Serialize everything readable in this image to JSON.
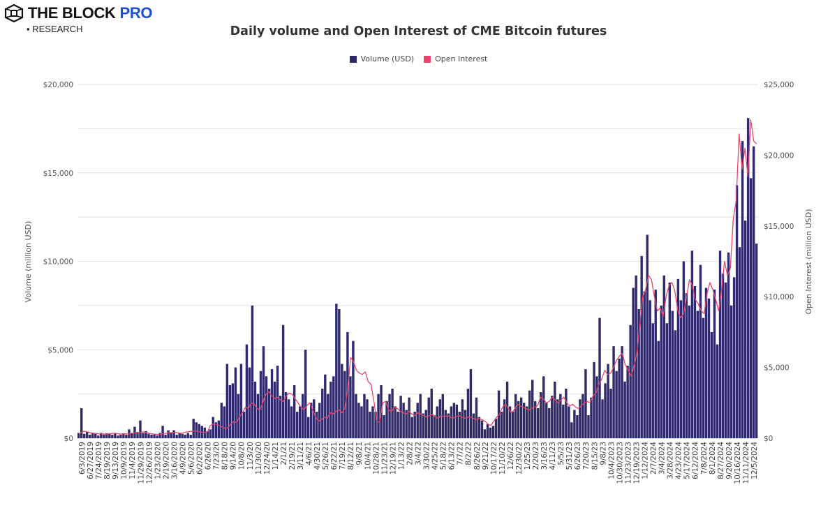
{
  "branding": {
    "logo_main": "THE BLOCK ",
    "logo_accent": "PRO",
    "logo_sub": "▪ RESEARCH"
  },
  "chart_data": {
    "type": "bar+line",
    "title": "Daily volume and Open Interest of CME Bitcoin futures",
    "legend": {
      "position": "top-center",
      "entries": [
        {
          "name": "Volume (USD)",
          "color": "#2e2a6b"
        },
        {
          "name": "Open Interest",
          "color": "#e8456b"
        }
      ]
    },
    "ylabel_left": "Volume (million USD)",
    "ylabel_right": "Open Interest (million USD)",
    "ylim_left": [
      0,
      20000
    ],
    "ylim_right": [
      0,
      25000
    ],
    "yticks_left": [
      "$0",
      "$5,000",
      "$10,000",
      "$15,000",
      "$20,000"
    ],
    "yticks_right": [
      "$0",
      "$5,000",
      "$10,000",
      "$15,000",
      "$20,000",
      "$25,000"
    ],
    "grid": true,
    "x_tick_labels": [
      "6/3/2019",
      "6/27/2019",
      "7/24/2019",
      "8/19/2019",
      "9/13/2019",
      "10/9/2019",
      "11/4/2019",
      "11/29/2019",
      "12/26/2019",
      "1/23/2020",
      "2/19/2020",
      "3/16/2020",
      "4/9/2020",
      "5/6/2020",
      "6/2/2020",
      "6/26/20",
      "7/23/20",
      "8/18/20",
      "9/14/20",
      "10/8/20",
      "11/3/20",
      "11/30/20",
      "12/24/20",
      "1/14/21",
      "2/1/21",
      "2/19/21",
      "3/11/21",
      "4/6/21",
      "4/30/21",
      "5/26/21",
      "6/22/21",
      "7/19/21",
      "8/12/21",
      "9/8/21",
      "10/4/21",
      "10/28/21",
      "11/23/21",
      "12/19/21",
      "1/13/22",
      "2/8/22",
      "3/4/22",
      "3/30/22",
      "4/25/22",
      "5/18/22",
      "6/13/22",
      "7/7/22",
      "8/2/22",
      "8/26/22",
      "9/21/22",
      "10/17/22",
      "11/10/22",
      "12/6/22",
      "12/30/22",
      "1/25/23",
      "2/20/23",
      "3/16/23",
      "4/11/23",
      "5/5/23",
      "5/31/23",
      "6/26/23",
      "7/20/23",
      "8/15/23",
      "9/8/23",
      "10/4/2023",
      "10/30/2023",
      "11/23/2023",
      "12/19/2023",
      "1/12/2024",
      "2/7/2024",
      "3/4/2024",
      "3/28/2024",
      "4/23/2024",
      "5/17/2024",
      "6/12/2024",
      "7/8/2024",
      "8/1/2024",
      "8/27/2024",
      "9/20/2024",
      "10/16/2024",
      "11/11/2024",
      "12/5/2024"
    ],
    "series": [
      {
        "name": "Volume (USD)",
        "type": "bar",
        "axis": "left",
        "values": [
          300,
          1700,
          250,
          350,
          200,
          300,
          250,
          150,
          300,
          200,
          280,
          250,
          200,
          300,
          150,
          200,
          250,
          200,
          500,
          300,
          650,
          350,
          1000,
          300,
          400,
          250,
          200,
          250,
          150,
          300,
          700,
          200,
          450,
          300,
          450,
          200,
          300,
          250,
          200,
          300,
          200,
          1100,
          900,
          800,
          700,
          600,
          400,
          500,
          1200,
          900,
          1000,
          2000,
          1800,
          4200,
          3000,
          3100,
          4000,
          2500,
          4200,
          1500,
          5300,
          4000,
          7500,
          3200,
          2500,
          3800,
          5200,
          3500,
          2800,
          3900,
          3200,
          4100,
          2400,
          6400,
          2600,
          2200,
          1800,
          3000,
          1500,
          1800,
          2500,
          5000,
          1200,
          2000,
          2200,
          1500,
          2000,
          2800,
          3600,
          2500,
          3200,
          3500,
          7600,
          7300,
          4200,
          3800,
          6000,
          3500,
          5500,
          2500,
          2000,
          1800,
          2500,
          2200,
          1500,
          1800,
          1500,
          2500,
          3000,
          1300,
          2100,
          2500,
          2800,
          1800,
          1500,
          2400,
          2000,
          1600,
          2300,
          1200,
          1500,
          2000,
          2500,
          1400,
          1600,
          2300,
          2800,
          1300,
          1800,
          2200,
          2500,
          1600,
          1400,
          1800,
          2000,
          1900,
          1500,
          2200,
          1600,
          2800,
          3900,
          1400,
          2300,
          1200,
          1000,
          500,
          800,
          600,
          700,
          1100,
          2700,
          1500,
          2200,
          3200,
          1800,
          1500,
          2500,
          2100,
          2300,
          2000,
          1800,
          2700,
          3300,
          2100,
          1700,
          2600,
          3500,
          2000,
          1700,
          2400,
          3200,
          2200,
          2500,
          1900,
          2800,
          1800,
          900,
          1600,
          1300,
          2200,
          2500,
          3900,
          1300,
          2300,
          4300,
          3500,
          6800,
          2200,
          3100,
          4200,
          2800,
          5200,
          3800,
          4500,
          5200,
          3200,
          4100,
          6400,
          8500,
          9200,
          7300,
          10300,
          8300,
          11500,
          7800,
          6500,
          8400,
          5500,
          7500,
          9200,
          6500,
          8800,
          7200,
          6100,
          9000,
          7800,
          10000,
          8200,
          7500,
          10600,
          8600,
          7200,
          9800,
          6800,
          8500,
          7900,
          6000,
          8400,
          5300,
          10600,
          9300,
          8800,
          10500,
          7500,
          9100,
          14300,
          10800,
          16800,
          12300,
          18100,
          14700,
          16500,
          11000
        ]
      },
      {
        "name": "Open Interest",
        "type": "line",
        "axis": "right",
        "values": [
          300,
          450,
          500,
          450,
          380,
          350,
          330,
          300,
          320,
          280,
          300,
          330,
          350,
          330,
          290,
          310,
          320,
          300,
          350,
          380,
          360,
          400,
          450,
          420,
          350,
          300,
          280,
          260,
          300,
          310,
          350,
          380,
          400,
          420,
          380,
          350,
          400,
          450,
          480,
          500,
          520,
          480,
          420,
          400,
          450,
          900,
          1000,
          980,
          900,
          800,
          700,
          750,
          1000,
          1200,
          1100,
          1500,
          1800,
          2200,
          2100,
          2500,
          2400,
          2100,
          2000,
          2600,
          3100,
          3300,
          3000,
          2800,
          2900,
          2700,
          2600,
          3000,
          3200,
          3100,
          2800,
          2500,
          2200,
          2000,
          2300,
          2500,
          2000,
          1500,
          1200,
          1300,
          1500,
          1400,
          1800,
          1700,
          1900,
          2000,
          1800,
          2100,
          3500,
          5700,
          5400,
          4800,
          4600,
          4500,
          4700,
          4000,
          3800,
          2600,
          1100,
          1200,
          2500,
          2600,
          2000,
          1900,
          2200,
          2100,
          1900,
          1800,
          1700,
          1900,
          1700,
          1600,
          1800,
          1700,
          1600,
          1500,
          1600,
          1700,
          1500,
          1400,
          1600,
          1500,
          1600,
          1500,
          1400,
          1500,
          1600,
          1500,
          1400,
          1500,
          1500,
          1400,
          1300,
          1400,
          1300,
          1200,
          1000,
          900,
          1200,
          1500,
          1700,
          2200,
          2400,
          2100,
          1800,
          2000,
          2400,
          2300,
          2200,
          2100,
          2000,
          2100,
          2200,
          2300,
          2900,
          2800,
          2500,
          2600,
          2900,
          2700,
          2500,
          2700,
          2900,
          2500,
          2300,
          2400,
          2200,
          2100,
          2300,
          2500,
          2600,
          2500,
          3000,
          3200,
          3800,
          4200,
          4800,
          4500,
          4600,
          5000,
          5500,
          5800,
          6000,
          5200,
          4800,
          4400,
          5100,
          6000,
          8000,
          10000,
          10500,
          11500,
          11200,
          10000,
          9000,
          9200,
          8600,
          10000,
          10800,
          11000,
          10400,
          9000,
          8500,
          8800,
          10000,
          11200,
          10800,
          9800,
          9500,
          9000,
          8800,
          10200,
          11000,
          10500,
          9800,
          9000,
          10500,
          12500,
          11500,
          12000,
          15500,
          16800,
          21500,
          19000,
          20500,
          18500,
          22500,
          21000,
          20800
        ]
      }
    ]
  }
}
